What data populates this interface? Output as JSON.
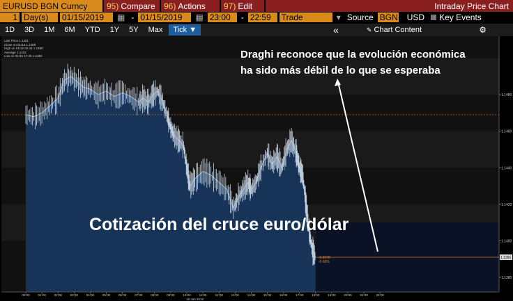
{
  "toolbar": {
    "ticker": "EURUSD BGN Curncy",
    "compare_num": "95)",
    "compare_label": "Compare",
    "actions_num": "96)",
    "actions_label": "Actions",
    "edit_num": "97)",
    "edit_label": "Edit",
    "title": "Intraday Price Chart"
  },
  "params": {
    "period_count": "1",
    "period_unit": "Day(s)",
    "start_date": "01/15/2019",
    "end_date": "01/15/2019",
    "start_time": "23:00",
    "end_time": "22:59",
    "market": "Trade",
    "source_label": "Source",
    "source_value": "BGN",
    "currency": "USD",
    "key_events": "Key Events"
  },
  "ranges": {
    "items": [
      "1D",
      "3D",
      "1M",
      "6M",
      "YTD",
      "1Y",
      "5Y",
      "Max"
    ],
    "active": "Tick ▼",
    "chart_content": "Chart Content",
    "collapse_icon": "«",
    "settings_icon": "gear"
  },
  "legend": {
    "lines": [
      "Last Price",
      "Close on 01/14",
      "High on 01/15 02:43",
      "Average",
      "Low on 01/15 17:45"
    ],
    "values": [
      "1.1391",
      "1.1469",
      "1.1490",
      "1.1432",
      "1.1384"
    ]
  },
  "annotation": {
    "headline_1": "Draghi reconoce que la evolución económica",
    "headline_2": "ha sido más débil de lo que se esperaba",
    "overlay_title": "Cotización del cruce euro/dólar"
  },
  "price_labels": {
    "change": "-0.0078",
    "change_pct": "-0.68%",
    "last": "1.1391"
  },
  "chart_data": {
    "type": "area",
    "x_labels": [
      "00:00",
      "01:00",
      "02:00",
      "03:00",
      "04:00",
      "05:00",
      "06:00",
      "07:00",
      "08:00",
      "09:00",
      "10:00",
      "11:00",
      "12:00",
      "13:00",
      "14:00",
      "15:00",
      "16:00",
      "17:00",
      "18:00",
      "19:00",
      "20:00",
      "21:00",
      "22:00"
    ],
    "date_label": "15 Jan 2019",
    "y_ticks": [
      "1.1480",
      "1.1460",
      "1.1440",
      "1.1420",
      "1.1400",
      "1.1380"
    ],
    "ylim": [
      1.1372,
      1.1512
    ],
    "x": [
      0,
      0.5,
      1,
      1.5,
      2,
      2.4,
      2.8,
      3.2,
      3.6,
      4,
      4.5,
      5,
      5.5,
      6,
      6.5,
      7,
      7.3,
      7.6,
      7.9,
      8.2,
      8.5,
      8.8,
      9,
      9.2,
      9.5,
      9.8,
      10,
      10.2,
      10.5,
      11,
      11.5,
      12,
      12.5,
      12.9,
      13.2,
      13.5,
      13.8,
      14,
      14.3,
      14.6,
      15,
      15.3,
      15.6,
      15.9,
      16.2,
      16.5,
      16.8,
      17,
      17.2,
      17.4,
      17.6,
      17.8,
      18
    ],
    "y": [
      1.1469,
      1.1468,
      1.147,
      1.1474,
      1.1478,
      1.1488,
      1.149,
      1.1487,
      1.1484,
      1.1483,
      1.148,
      1.1482,
      1.1479,
      1.1481,
      1.1479,
      1.1476,
      1.1478,
      1.1476,
      1.148,
      1.1482,
      1.1476,
      1.1468,
      1.1462,
      1.1458,
      1.1455,
      1.1452,
      1.144,
      1.143,
      1.1434,
      1.1438,
      1.1436,
      1.1432,
      1.1428,
      1.1418,
      1.1424,
      1.1428,
      1.1432,
      1.1428,
      1.1432,
      1.144,
      1.1448,
      1.1442,
      1.1446,
      1.144,
      1.145,
      1.1455,
      1.1448,
      1.144,
      1.1436,
      1.142,
      1.1405,
      1.1395,
      1.1391
    ],
    "reference_lines": [
      {
        "name": "Close on 01/14",
        "value": 1.1469
      }
    ]
  }
}
